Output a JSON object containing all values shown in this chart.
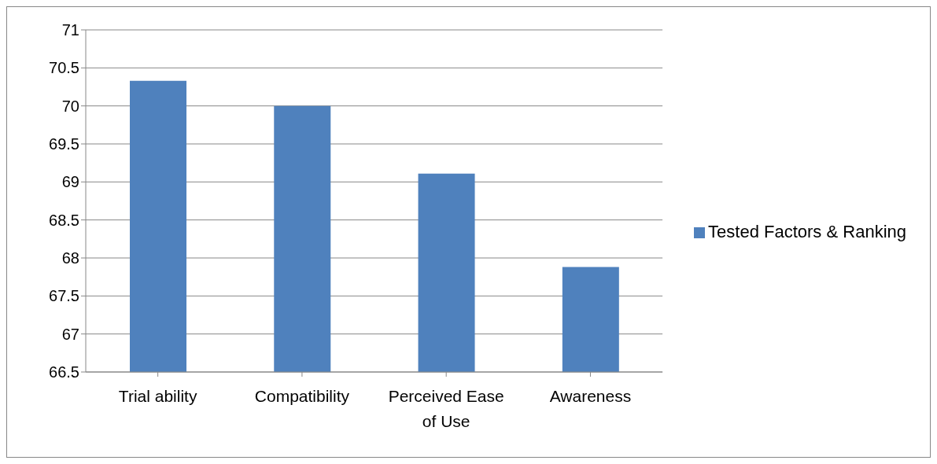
{
  "chart_data": {
    "type": "bar",
    "categories": [
      "Trial ability",
      "Compatibility",
      "Perceived Ease of Use",
      "Awareness"
    ],
    "series": [
      {
        "name": "Tested Factors & Ranking",
        "color": "#4f81bd",
        "values": [
          70.33,
          70.0,
          69.11,
          67.88
        ]
      }
    ],
    "ylim": [
      66.5,
      71
    ],
    "yticks": [
      66.5,
      67,
      67.5,
      68,
      68.5,
      69,
      69.5,
      70,
      70.5,
      71
    ],
    "grid": "y",
    "legend": "right"
  }
}
